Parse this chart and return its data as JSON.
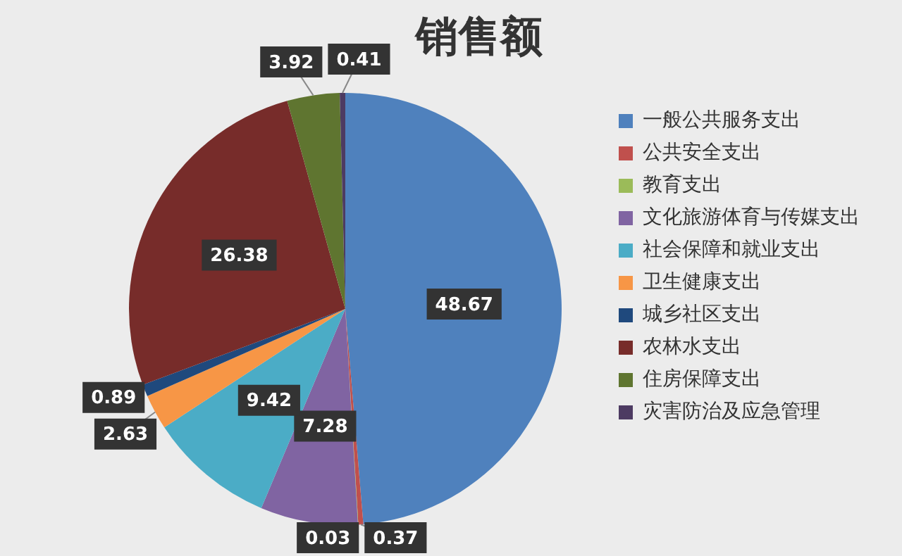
{
  "chart_data": {
    "type": "pie",
    "title": "销售额",
    "categories": [
      "一般公共服务支出",
      "公共安全支出",
      "教育支出",
      "文化旅游体育与传媒支出",
      "社会保障和就业支出",
      "卫生健康支出",
      "城乡社区支出",
      "农林水支出",
      "住房保障支出",
      "灾害防治及应急管理"
    ],
    "values": [
      48.67,
      0.37,
      0.03,
      7.28,
      9.42,
      2.63,
      0.89,
      26.38,
      3.92,
      0.41
    ],
    "colors": [
      "#4f81bd",
      "#c0504d",
      "#9bbb59",
      "#8064a2",
      "#4bacc6",
      "#f79646",
      "#1f497d",
      "#772c2a",
      "#5f7530",
      "#4d3b62"
    ],
    "data_labels": true,
    "legend": "right"
  }
}
